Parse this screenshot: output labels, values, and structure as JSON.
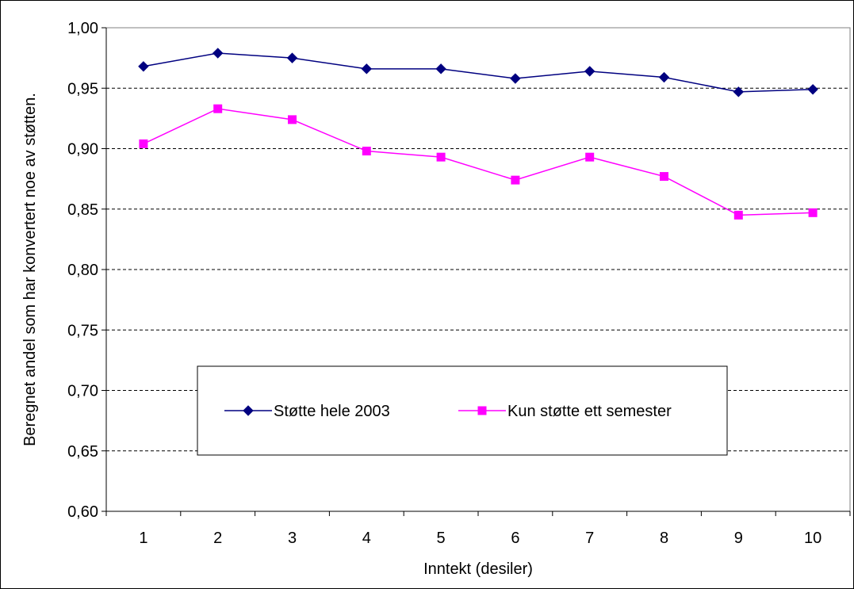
{
  "chart_data": {
    "type": "line",
    "title": "",
    "xlabel": "Inntekt (desiler)",
    "ylabel": "Beregnet andel som har konvertert noe av støtten.",
    "categories": [
      "1",
      "2",
      "3",
      "4",
      "5",
      "6",
      "7",
      "8",
      "9",
      "10"
    ],
    "ylim": [
      0.6,
      1.0
    ],
    "yticks": [
      "0,60",
      "0,65",
      "0,70",
      "0,75",
      "0,80",
      "0,85",
      "0,90",
      "0,95",
      "1,00"
    ],
    "ytick_values": [
      0.6,
      0.65,
      0.7,
      0.75,
      0.8,
      0.85,
      0.9,
      0.95,
      1.0
    ],
    "grid": "horizontal dashed",
    "legend_position": "center-bottom (inside plot)",
    "series": [
      {
        "name": "Støtte hele 2003",
        "color": "#000080",
        "marker": "diamond",
        "values": [
          0.968,
          0.979,
          0.975,
          0.966,
          0.966,
          0.958,
          0.964,
          0.959,
          0.947,
          0.949
        ]
      },
      {
        "name": "Kun støtte ett semester",
        "color": "#FF00FF",
        "marker": "square",
        "values": [
          0.904,
          0.933,
          0.924,
          0.898,
          0.893,
          0.874,
          0.893,
          0.877,
          0.845,
          0.847
        ]
      }
    ]
  }
}
